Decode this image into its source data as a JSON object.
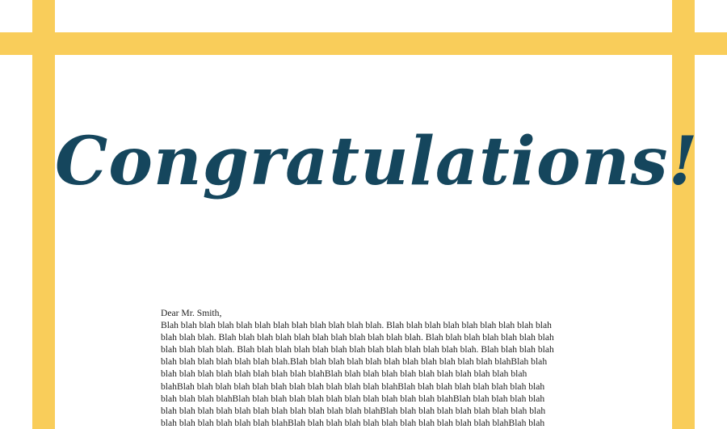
{
  "card": {
    "border_color": "#f9cd5a",
    "text_color": "#15465d"
  },
  "heading": {
    "text": "Congratulations!"
  },
  "letter": {
    "greeting": "Dear Mr. Smith,",
    "body": "Blah blah blah blah blah blah blah blah blah blah blah blah. Blah blah blah blah blah blah blah blah blah blah blah blah. Blah blah blah blah blah blah blah blah blah blah blah. Blah blah blah blah blah blah blah blah blah blah blah. Blah blah blah blah blah blah blah blah blah blah blah blah blah. Blah blah blah blah blah blah blah blah blah blah blah.Blah blah blah blah blah blah blah blah blah blah blah blahBlah blah blah blah blah blah blah blah blah blah blahBlah blah blah blah blah blah blah blah blah blah blah blahBlah blah blah blah blah blah blah blah blah blah blah blahBlah blah blah blah blah blah blah blah blah blah blah blahBlah blah blah blah blah blah blah blah blah blah blah blahBlah blah blah blah blah blah blah blah blah blah blah blah blah blah blah blah blahBlah blah blah blah blah blah blah blah blah blah blah blah blah blah blah blahBlah blah blah blah blah blah blah blah blah blah blah blahBlah blah blah blah blah blah"
  }
}
